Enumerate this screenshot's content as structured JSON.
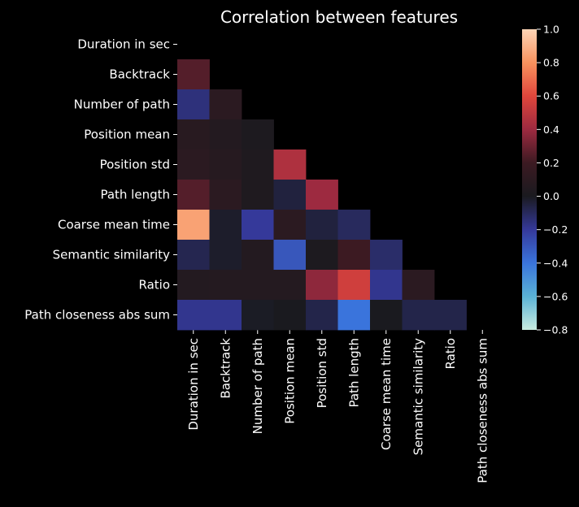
{
  "chart_data": {
    "type": "heatmap",
    "title": "Correlation between features",
    "xlabel": "",
    "ylabel": "",
    "row_labels": [
      "Duration in sec",
      "Backtrack",
      "Number of path",
      "Position mean",
      "Position std",
      "Path length",
      "Coarse mean time",
      "Semantic similarity",
      "Ratio",
      "Path closeness abs sum"
    ],
    "col_labels": [
      "Duration in sec",
      "Backtrack",
      "Number of path",
      "Position mean",
      "Position std",
      "Path length",
      "Coarse mean time",
      "Semantic similarity",
      "Ratio",
      "Path closeness abs sum"
    ],
    "mask": "upper-triangle-including-diagonal",
    "lower_triangle_values": [
      [],
      [
        0.25
      ],
      [
        -0.15,
        0.1
      ],
      [
        0.08,
        0.05,
        0.02
      ],
      [
        0.1,
        0.07,
        0.03,
        0.45
      ],
      [
        0.25,
        0.1,
        0.03,
        -0.05,
        0.4
      ],
      [
        0.85,
        -0.02,
        -0.2,
        0.1,
        -0.05,
        -0.1
      ],
      [
        -0.08,
        -0.02,
        0.05,
        -0.3,
        0.02,
        0.2,
        -0.12
      ],
      [
        0.05,
        0.06,
        0.06,
        0.06,
        0.37,
        0.55,
        -0.18,
        0.1
      ],
      [
        -0.18,
        -0.18,
        -0.01,
        0.0,
        -0.07,
        -0.4,
        0.0,
        -0.07,
        -0.07
      ]
    ],
    "colorbar": {
      "range": [
        -0.8,
        1.0
      ],
      "ticks": [
        1.0,
        0.8,
        0.6,
        0.4,
        0.2,
        0.0,
        -0.2,
        -0.4,
        -0.6,
        -0.8
      ],
      "tick_labels": [
        "1.0",
        "0.8",
        "0.6",
        "0.4",
        "0.2",
        "0.0",
        "−0.2",
        "−0.4",
        "−0.6",
        "−0.8"
      ],
      "colormap": "icefire",
      "colors": {
        "stops": [
          [
            -0.8,
            "#c9ece0"
          ],
          [
            -0.6,
            "#5ab2d6"
          ],
          [
            -0.4,
            "#3a74dc"
          ],
          [
            -0.2,
            "#35399a"
          ],
          [
            0.0,
            "#1a1a1f"
          ],
          [
            0.2,
            "#3c1a22"
          ],
          [
            0.4,
            "#9d2a40"
          ],
          [
            0.6,
            "#e0463c"
          ],
          [
            0.8,
            "#f8925e"
          ],
          [
            1.0,
            "#fcd4b6"
          ]
        ]
      }
    }
  }
}
